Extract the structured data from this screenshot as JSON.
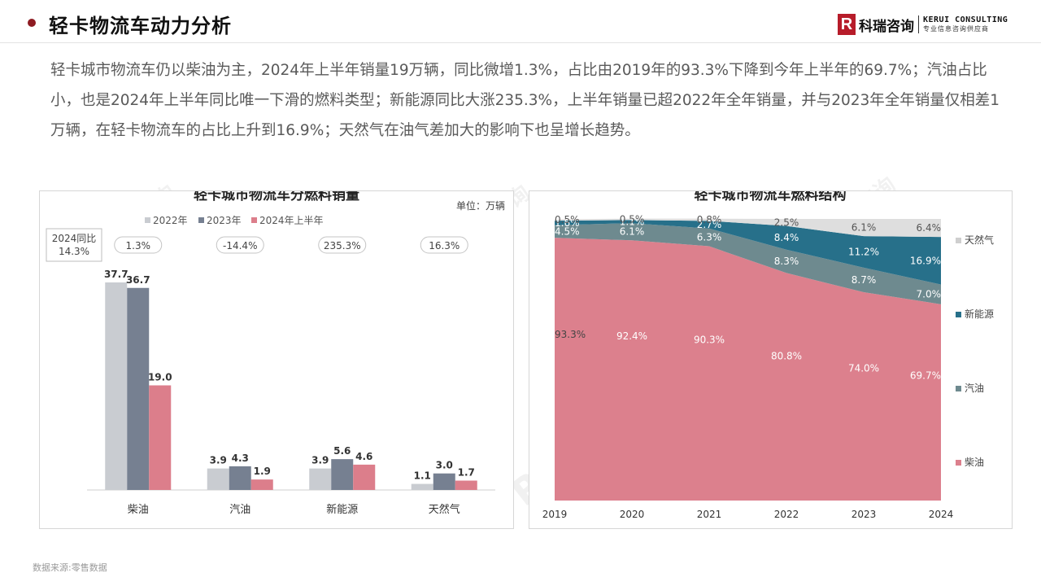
{
  "header": {
    "title": "轻卡物流车动力分析",
    "logo_mark": "R",
    "logo_name": "科瑞咨询",
    "logo_en": "KERUI CONSULTING",
    "logo_tagline": "专业信息咨询供应商"
  },
  "summary": "轻卡城市物流车仍以柴油为主，2024年上半年销量19万辆，同比微增1.3%，占比由2019年的93.3%下降到今年上半年的69.7%；汽油占比小，也是2024年上半年同比唯一下滑的燃料类型；新能源同比大涨235.3%，上半年销量已超2022年全年销量，并与2023年全年销量仅相差1万辆，在轻卡物流车的占比上升到16.9%；天然气在油气差加大的影响下也呈增长趋势。",
  "source": "数据来源:零售数据",
  "watermark": "科瑞咨询",
  "colors": {
    "accent": "#8e1b22",
    "logo": "#b71c2a"
  },
  "chart_data": [
    {
      "type": "bar",
      "title": "轻卡城市物流车分燃料销量",
      "unit": "单位：万辆",
      "categories": [
        "柴油",
        "汽油",
        "新能源",
        "天然气"
      ],
      "series": [
        {
          "name": "2022年",
          "color": "#c9ccd1",
          "values": [
            37.7,
            3.9,
            3.9,
            1.1
          ]
        },
        {
          "name": "2023年",
          "color": "#768091",
          "values": [
            36.7,
            4.3,
            5.6,
            3.0
          ]
        },
        {
          "name": "2024年上半年",
          "color": "#dc7e8b",
          "values": [
            19.0,
            1.9,
            4.6,
            1.7
          ]
        }
      ],
      "yoy_label": "2024同比",
      "yoy_total": "14.3%",
      "yoy": [
        "1.3%",
        "-14.4%",
        "235.3%",
        "16.3%"
      ],
      "ylim": [
        0,
        40
      ],
      "legend": "top"
    },
    {
      "type": "area",
      "title": "轻卡城市物流车燃料结构",
      "x": [
        "2019",
        "2020",
        "2021",
        "2022",
        "2023",
        "2024"
      ],
      "series": [
        {
          "name": "柴油",
          "color": "#dc808d",
          "values": [
            93.3,
            92.4,
            90.3,
            80.8,
            74.0,
            69.7
          ],
          "labels": [
            "93.3%",
            "92.4%",
            "90.3%",
            "80.8%",
            "74.0%",
            "69.7%"
          ]
        },
        {
          "name": "汽油",
          "color": "#6e8a8f",
          "values": [
            4.5,
            6.1,
            6.3,
            8.3,
            8.7,
            7.0
          ],
          "labels": [
            "4.5%",
            "6.1%",
            "6.3%",
            "8.3%",
            "8.7%",
            "7.0%"
          ]
        },
        {
          "name": "新能源",
          "color": "#27708a",
          "values": [
            1.6,
            1.1,
            2.7,
            8.4,
            11.2,
            16.9
          ],
          "labels": [
            "1.6%",
            "1.1%",
            "2.7%",
            "8.4%",
            "11.2%",
            "16.9%"
          ]
        },
        {
          "name": "天然气",
          "color": "#dedede",
          "values": [
            0.5,
            0.5,
            0.8,
            2.5,
            6.1,
            6.4
          ],
          "labels": [
            "0.5%",
            "0.5%",
            "0.8%",
            "2.5%",
            "6.1%",
            "6.4%"
          ]
        }
      ],
      "ylim": [
        0,
        100
      ],
      "legend": "right"
    }
  ]
}
